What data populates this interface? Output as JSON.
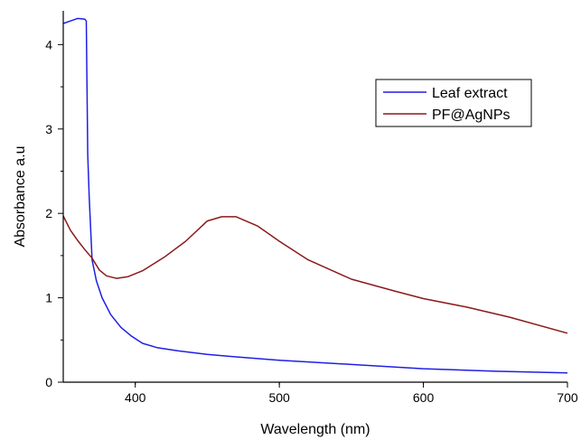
{
  "chart_data": {
    "type": "line",
    "title": "",
    "xlabel": "Wavelength (nm)",
    "ylabel": "Absorbance a.u",
    "xlim": [
      350,
      700
    ],
    "ylim": [
      0,
      4.4
    ],
    "x_ticks": [
      400,
      500,
      600,
      700
    ],
    "y_ticks": [
      0,
      1,
      2,
      3,
      4
    ],
    "grid": false,
    "legend": "top-right",
    "series": [
      {
        "name": "Leaf extract",
        "color": "#1f1fe6",
        "points": [
          [
            350,
            4.25
          ],
          [
            355,
            4.28
          ],
          [
            360,
            4.31
          ],
          [
            365,
            4.3
          ],
          [
            366,
            4.28
          ],
          [
            367,
            2.7
          ],
          [
            368,
            2.2
          ],
          [
            370,
            1.45
          ],
          [
            373,
            1.2
          ],
          [
            377,
            1.0
          ],
          [
            383,
            0.8
          ],
          [
            390,
            0.65
          ],
          [
            397,
            0.55
          ],
          [
            405,
            0.46
          ],
          [
            415,
            0.41
          ],
          [
            430,
            0.37
          ],
          [
            450,
            0.33
          ],
          [
            470,
            0.3
          ],
          [
            500,
            0.26
          ],
          [
            550,
            0.21
          ],
          [
            600,
            0.16
          ],
          [
            650,
            0.13
          ],
          [
            700,
            0.11
          ]
        ]
      },
      {
        "name": "PF@AgNPs",
        "color": "#8b1a1a",
        "points": [
          [
            350,
            1.97
          ],
          [
            355,
            1.8
          ],
          [
            360,
            1.68
          ],
          [
            365,
            1.57
          ],
          [
            370,
            1.47
          ],
          [
            375,
            1.33
          ],
          [
            380,
            1.26
          ],
          [
            387,
            1.23
          ],
          [
            395,
            1.25
          ],
          [
            405,
            1.32
          ],
          [
            420,
            1.48
          ],
          [
            435,
            1.67
          ],
          [
            450,
            1.91
          ],
          [
            460,
            1.96
          ],
          [
            470,
            1.96
          ],
          [
            485,
            1.85
          ],
          [
            500,
            1.67
          ],
          [
            520,
            1.45
          ],
          [
            550,
            1.22
          ],
          [
            580,
            1.08
          ],
          [
            600,
            0.99
          ],
          [
            630,
            0.89
          ],
          [
            660,
            0.77
          ],
          [
            700,
            0.58
          ]
        ]
      }
    ]
  }
}
